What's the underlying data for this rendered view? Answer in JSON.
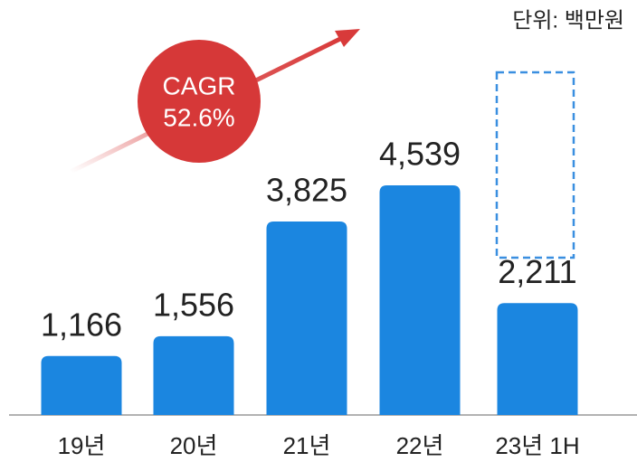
{
  "chart_data": {
    "type": "bar",
    "unit_label": "단위: 백만원",
    "annotations": [
      "CAGR",
      "52.6%"
    ],
    "categories": [
      "19년",
      "20년",
      "21년",
      "22년",
      "23년 1H"
    ],
    "values": [
      1166,
      1556,
      3825,
      4539,
      2211
    ],
    "value_labels": [
      "1,166",
      "1,556",
      "3,825",
      "4,539",
      "2,211"
    ],
    "color": "#1b86e0"
  }
}
